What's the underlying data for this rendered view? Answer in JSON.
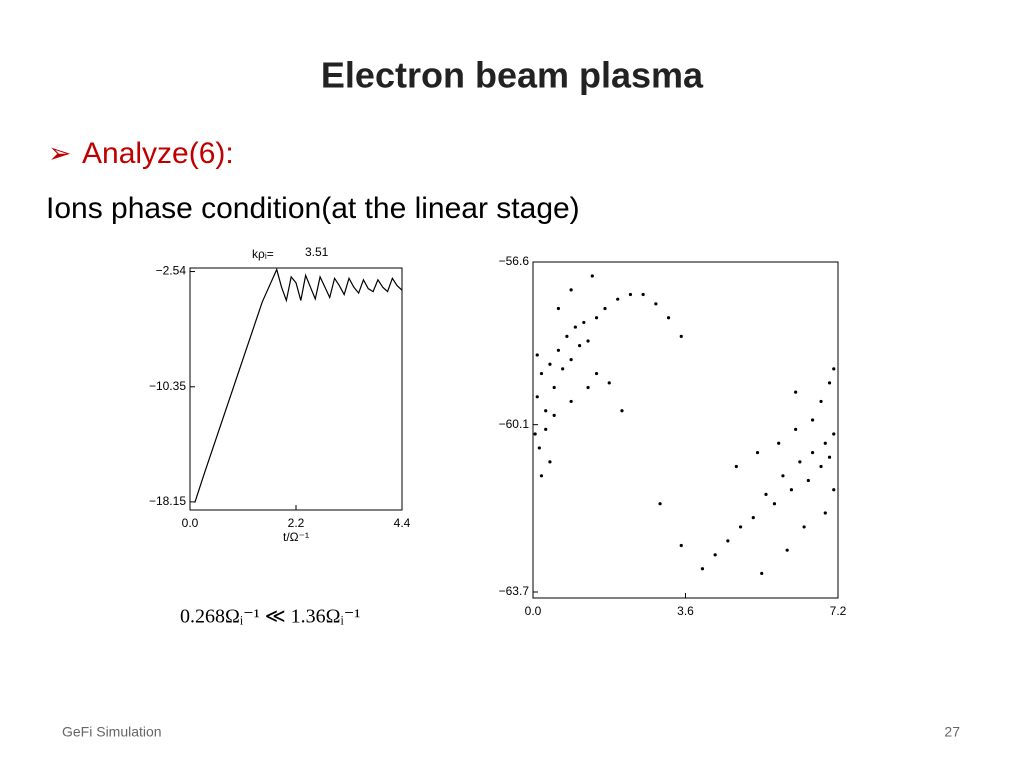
{
  "header": {
    "title": "Electron beam plasma"
  },
  "bullet": {
    "marker": "➢",
    "text": "Analyze(6):"
  },
  "body": "Ions phase condition(at the linear stage)",
  "formula": "0.268Ωᵢ⁻¹ ≪ 1.36Ωᵢ⁻¹",
  "footer": {
    "left": "GeFi Simulation",
    "page": "27"
  },
  "chart_data": [
    {
      "type": "line",
      "title": "kρᵢ=",
      "annotation": "3.51",
      "x_label": "t/Ω⁻¹",
      "xlim": [
        0,
        4.4
      ],
      "ylim": [
        -18.7,
        -2.3
      ],
      "xticks": [
        {
          "value": 0,
          "label": "0.0"
        },
        2.2,
        4.4
      ],
      "yticks": [
        {
          "value": -2.54,
          "label": "−2.54"
        },
        {
          "value": -10.35,
          "label": "−10.35"
        },
        {
          "value": -18.15,
          "label": "−18.15"
        }
      ],
      "series": [
        {
          "color": "#000000",
          "x": [
            0.1,
            0.3,
            0.6,
            0.9,
            1.2,
            1.5,
            1.8,
            1.9,
            2.0,
            2.1,
            2.2,
            2.3,
            2.4,
            2.5,
            2.6,
            2.7,
            2.8,
            2.9,
            3.0,
            3.1,
            3.2,
            3.3,
            3.4,
            3.5,
            3.6,
            3.7,
            3.8,
            3.9,
            4.0,
            4.1,
            4.2,
            4.3,
            4.4
          ],
          "values": [
            -18.2,
            -16.2,
            -13.3,
            -10.4,
            -7.5,
            -4.6,
            -2.4,
            -3.6,
            -4.5,
            -2.9,
            -3.3,
            -4.5,
            -2.8,
            -3.6,
            -4.4,
            -2.9,
            -3.6,
            -4.3,
            -3.0,
            -3.5,
            -4.1,
            -3.0,
            -3.6,
            -4.0,
            -3.1,
            -3.7,
            -3.9,
            -3.1,
            -3.6,
            -3.9,
            -3.0,
            -3.5,
            -3.8
          ]
        }
      ]
    },
    {
      "type": "scatter",
      "xlim": [
        0,
        7.2
      ],
      "ylim": [
        -63.7,
        -56.6
      ],
      "xticks": [
        {
          "value": 0,
          "label": "0.0"
        },
        3.6,
        7.2
      ],
      "yticks": [
        {
          "value": -56.6,
          "label": "−56.6"
        },
        {
          "value": -60.1,
          "label": "−60.1"
        },
        {
          "value": -63.7,
          "label": "−63.7"
        }
      ],
      "series": [
        {
          "color": "#000000",
          "x": [
            0.1,
            0.2,
            0.3,
            0.4,
            0.5,
            0.6,
            0.7,
            0.8,
            0.9,
            1.0,
            1.1,
            1.2,
            1.3,
            1.5,
            1.7,
            2.0,
            2.3,
            2.6,
            2.9,
            3.2,
            0.05,
            0.15,
            0.3,
            0.5,
            0.2,
            0.4,
            1.5,
            1.8,
            2.1,
            0.9,
            1.3,
            3.5,
            0.1,
            0.6,
            0.9,
            1.4,
            7.1,
            7.0,
            6.9,
            6.8,
            6.6,
            6.5,
            6.3,
            6.1,
            5.9,
            5.7,
            5.5,
            5.2,
            4.9,
            4.6,
            4.3,
            4.0,
            3.5,
            3.0,
            6.8,
            7.0,
            6.6,
            6.2,
            5.8,
            5.3,
            4.8,
            7.1,
            6.9,
            6.4,
            6.0,
            5.4,
            7.1,
            6.2
          ],
          "values": [
            -59.5,
            -59.0,
            -59.8,
            -58.8,
            -59.3,
            -58.5,
            -58.9,
            -58.2,
            -58.7,
            -58.0,
            -58.4,
            -57.9,
            -58.3,
            -57.8,
            -57.6,
            -57.4,
            -57.3,
            -57.3,
            -57.5,
            -57.8,
            -60.3,
            -60.6,
            -60.2,
            -59.9,
            -61.2,
            -60.9,
            -59.0,
            -59.2,
            -59.8,
            -59.6,
            -59.3,
            -58.2,
            -58.6,
            -57.6,
            -57.2,
            -56.9,
            -60.3,
            -60.8,
            -60.5,
            -61.0,
            -60.7,
            -61.3,
            -60.9,
            -61.5,
            -61.2,
            -61.8,
            -61.6,
            -62.1,
            -62.3,
            -62.6,
            -62.9,
            -63.2,
            -62.7,
            -61.8,
            -59.6,
            -59.2,
            -60.0,
            -60.2,
            -60.5,
            -60.7,
            -61.0,
            -61.5,
            -62.0,
            -62.3,
            -62.8,
            -63.3,
            -58.9,
            -59.4
          ]
        }
      ]
    }
  ]
}
